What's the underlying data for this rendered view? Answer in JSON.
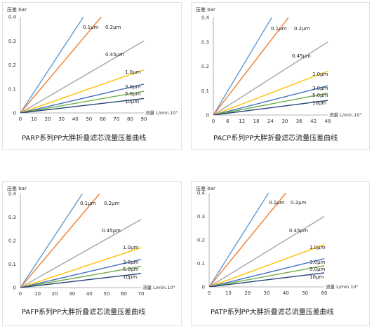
{
  "chart_data": [
    {
      "type": "line",
      "title": "PARP系列PP大胖折叠滤芯流量压差曲线",
      "ylabel": "压差 bar",
      "xlabel": "流量 L/min.10\"",
      "xlim": [
        0,
        90
      ],
      "ylim": [
        0,
        0.4
      ],
      "xticks": [
        "0",
        "10",
        "20",
        "30",
        "40",
        "50",
        "60",
        "70",
        "80",
        "90"
      ],
      "yticks": [
        "0",
        "0.1",
        "0.2",
        "0.3",
        "0.4"
      ],
      "grid": false,
      "series": [
        {
          "name": "0.1μm",
          "color": "#5b9bd5",
          "points": [
            [
              0,
              0
            ],
            [
              46,
              0.4
            ]
          ]
        },
        {
          "name": "0.2μm",
          "color": "#ed7d31",
          "points": [
            [
              0,
              0
            ],
            [
              59,
              0.4
            ]
          ]
        },
        {
          "name": "0.45μm",
          "color": "#a5a5a5",
          "points": [
            [
              0,
              0
            ],
            [
              90,
              0.3
            ]
          ]
        },
        {
          "name": "1.0μm",
          "color": "#ffc000",
          "points": [
            [
              0,
              0
            ],
            [
              90,
              0.18
            ]
          ]
        },
        {
          "name": "3.0μm",
          "color": "#4472c4",
          "points": [
            [
              0,
              0
            ],
            [
              90,
              0.12
            ]
          ]
        },
        {
          "name": "5.0μm",
          "color": "#70ad47",
          "points": [
            [
              0,
              0
            ],
            [
              90,
              0.09
            ]
          ]
        },
        {
          "name": "10μm",
          "color": "#264478",
          "points": [
            [
              0,
              0
            ],
            [
              90,
              0.06
            ]
          ]
        }
      ]
    },
    {
      "type": "line",
      "title": "PACP系列PP大胖折叠滤芯流量压差曲线",
      "ylabel": "压差 bar",
      "xlabel": "流量 L/min.10\"",
      "xlim": [
        0,
        48
      ],
      "ylim": [
        0,
        0.4
      ],
      "xticks": [
        "0",
        "6",
        "12",
        "18",
        "24",
        "30",
        "36",
        "42",
        "48"
      ],
      "yticks": [
        "0",
        "0.1",
        "0.2",
        "0.3",
        "0.4"
      ],
      "grid": false,
      "series": [
        {
          "name": "0.1μm",
          "color": "#5b9bd5",
          "points": [
            [
              0,
              0
            ],
            [
              24.5,
              0.4
            ]
          ]
        },
        {
          "name": "0.2μm",
          "color": "#ed7d31",
          "points": [
            [
              0,
              0
            ],
            [
              31.5,
              0.4
            ]
          ]
        },
        {
          "name": "0.45μm",
          "color": "#a5a5a5",
          "points": [
            [
              0,
              0
            ],
            [
              48,
              0.3
            ]
          ]
        },
        {
          "name": "1.0μm",
          "color": "#ffc000",
          "points": [
            [
              0,
              0
            ],
            [
              48,
              0.18
            ]
          ]
        },
        {
          "name": "3.0μm",
          "color": "#4472c4",
          "points": [
            [
              0,
              0
            ],
            [
              48,
              0.12
            ]
          ]
        },
        {
          "name": "5.0μm",
          "color": "#70ad47",
          "points": [
            [
              0,
              0
            ],
            [
              48,
              0.09
            ]
          ]
        },
        {
          "name": "10μm",
          "color": "#264478",
          "points": [
            [
              0,
              0
            ],
            [
              48,
              0.06
            ]
          ]
        }
      ]
    },
    {
      "type": "line",
      "title": "PAFP系列PP大胖折叠滤芯流量压差曲线",
      "ylabel": "压差 bar",
      "xlabel": "流量 L/min.10\"",
      "xlim": [
        0,
        70
      ],
      "ylim": [
        0,
        0.4
      ],
      "xticks": [
        "0",
        "10",
        "20",
        "30",
        "40",
        "50",
        "60",
        "70"
      ],
      "yticks": [
        "0",
        "0.1",
        "0.2",
        "0.3",
        "0.4"
      ],
      "grid": false,
      "series": [
        {
          "name": "0.1μm",
          "color": "#5b9bd5",
          "points": [
            [
              0,
              0
            ],
            [
              36,
              0.4
            ]
          ]
        },
        {
          "name": "0.2μm",
          "color": "#ed7d31",
          "points": [
            [
              0,
              0
            ],
            [
              46,
              0.4
            ]
          ]
        },
        {
          "name": "0.45μm",
          "color": "#a5a5a5",
          "points": [
            [
              0,
              0
            ],
            [
              70,
              0.29
            ]
          ]
        },
        {
          "name": "1.0μm",
          "color": "#ffc000",
          "points": [
            [
              0,
              0
            ],
            [
              70,
              0.17
            ]
          ]
        },
        {
          "name": "3.0μm",
          "color": "#4472c4",
          "points": [
            [
              0,
              0
            ],
            [
              70,
              0.12
            ]
          ]
        },
        {
          "name": "5.0μm",
          "color": "#70ad47",
          "points": [
            [
              0,
              0
            ],
            [
              70,
              0.09
            ]
          ]
        },
        {
          "name": "10μm",
          "color": "#264478",
          "points": [
            [
              0,
              0
            ],
            [
              70,
              0.06
            ]
          ]
        }
      ]
    },
    {
      "type": "line",
      "title": "PATP系列PP大胖折叠滤芯流量压差曲线",
      "ylabel": "压差 bar",
      "xlabel": "流量 L/min.10\"",
      "xlim": [
        0,
        60
      ],
      "ylim": [
        0,
        0.4
      ],
      "xticks": [
        "0",
        "10",
        "20",
        "30",
        "40",
        "50",
        "60"
      ],
      "yticks": [
        "0",
        "0.1",
        "0.2",
        "0.3",
        "0.4"
      ],
      "grid": false,
      "series": [
        {
          "name": "0.1μm",
          "color": "#5b9bd5",
          "points": [
            [
              0,
              0
            ],
            [
              31,
              0.4
            ]
          ]
        },
        {
          "name": "0.2μm",
          "color": "#ed7d31",
          "points": [
            [
              0,
              0
            ],
            [
              40,
              0.4
            ]
          ]
        },
        {
          "name": "0.45μm",
          "color": "#a5a5a5",
          "points": [
            [
              0,
              0
            ],
            [
              60,
              0.3
            ]
          ]
        },
        {
          "name": "1.0μm",
          "color": "#ffc000",
          "points": [
            [
              0,
              0
            ],
            [
              60,
              0.18
            ]
          ]
        },
        {
          "name": "3.0μm",
          "color": "#4472c4",
          "points": [
            [
              0,
              0
            ],
            [
              60,
              0.12
            ]
          ]
        },
        {
          "name": "5.0μm",
          "color": "#70ad47",
          "points": [
            [
              0,
              0
            ],
            [
              60,
              0.09
            ]
          ]
        },
        {
          "name": "10μm",
          "color": "#264478",
          "points": [
            [
              0,
              0
            ],
            [
              60,
              0.06
            ]
          ]
        }
      ]
    }
  ]
}
